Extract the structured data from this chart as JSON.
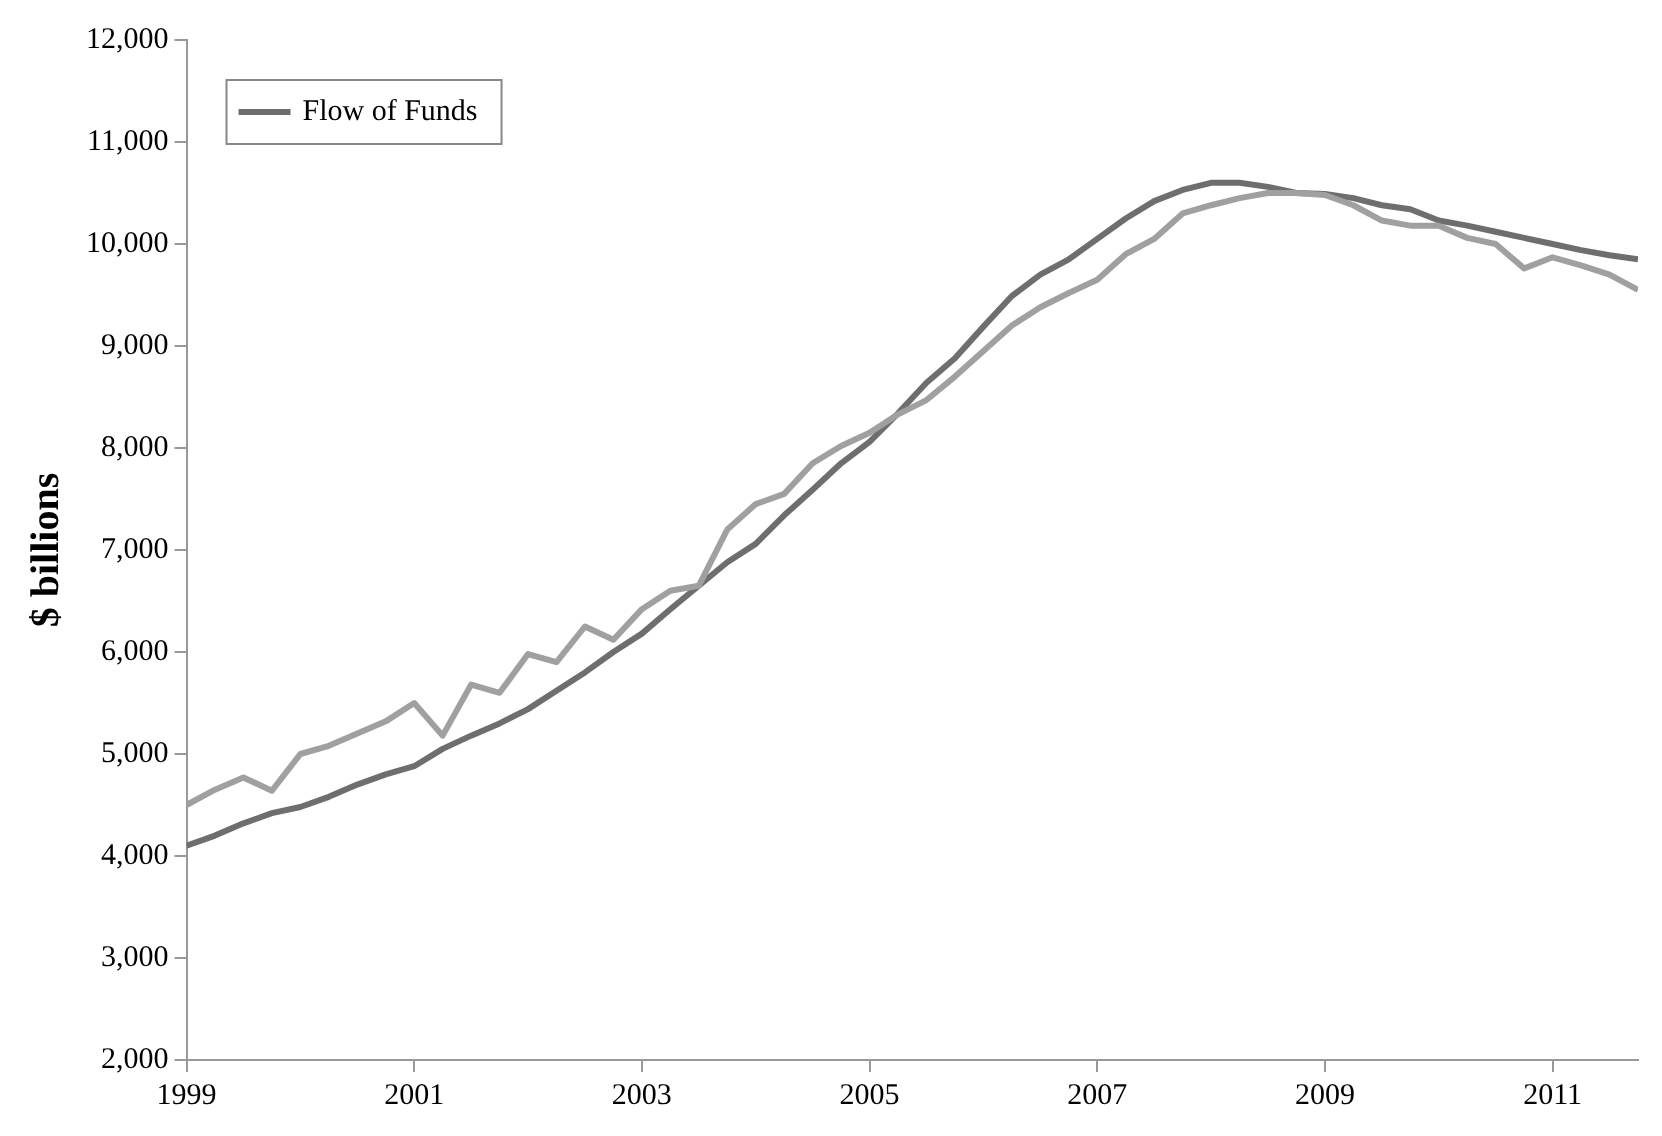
{
  "chart_data": {
    "type": "line",
    "ylabel": "$ billions",
    "x": [
      1999,
      1999.25,
      1999.5,
      1999.75,
      2000,
      2000.25,
      2000.5,
      2000.75,
      2001,
      2001.25,
      2001.5,
      2001.75,
      2002,
      2002.25,
      2002.5,
      2002.75,
      2003,
      2003.25,
      2003.5,
      2003.75,
      2004,
      2004.25,
      2004.5,
      2004.75,
      2005,
      2005.25,
      2005.5,
      2005.75,
      2006,
      2006.25,
      2006.5,
      2006.75,
      2007,
      2007.25,
      2007.5,
      2007.75,
      2008,
      2008.25,
      2008.5,
      2008.75,
      2009,
      2009.25,
      2009.5,
      2009.75,
      2010,
      2010.25,
      2010.5,
      2010.75,
      2011,
      2011.25,
      2011.5,
      2011.75
    ],
    "series": [
      {
        "color": "#a0a0a0",
        "values": [
          4500,
          4650,
          4770,
          4640,
          5000,
          5080,
          5200,
          5320,
          5500,
          5180,
          5680,
          5600,
          5980,
          5900,
          6250,
          6120,
          6420,
          6600,
          6650,
          7200,
          7450,
          7550,
          7850,
          8020,
          8150,
          8330,
          8470,
          8700,
          8950,
          9200,
          9380,
          9520,
          9650,
          9900,
          10050,
          10300,
          10380,
          10450,
          10500,
          10500,
          10480,
          10380,
          10230,
          10180,
          10180,
          10060,
          10000,
          9760,
          9870,
          9790,
          9700,
          9550
        ]
      },
      {
        "name": "Flow of Funds",
        "color": "#6e6e6e",
        "values": [
          4100,
          4200,
          4320,
          4420,
          4480,
          4580,
          4700,
          4800,
          4880,
          5050,
          5180,
          5300,
          5440,
          5620,
          5800,
          6000,
          6180,
          6420,
          6650,
          6880,
          7060,
          7340,
          7590,
          7850,
          8060,
          8340,
          8640,
          8880,
          9190,
          9490,
          9700,
          9850,
          10050,
          10250,
          10420,
          10530,
          10600,
          10600,
          10560,
          10500,
          10490,
          10450,
          10380,
          10340,
          10230,
          10180,
          10120,
          10060,
          10000,
          9940,
          9890,
          9850
        ]
      }
    ],
    "xlim": [
      1999,
      2011.75
    ],
    "xticks": [
      1999,
      2001,
      2003,
      2005,
      2007,
      2009,
      2011
    ],
    "ylim": [
      2000,
      12000
    ],
    "yticks": [
      {
        "value": 2000,
        "label": "2,000"
      },
      {
        "value": 3000,
        "label": "3,000"
      },
      {
        "value": 4000,
        "label": "4,000"
      },
      {
        "value": 5000,
        "label": "5,000"
      },
      {
        "value": 6000,
        "label": "6,000"
      },
      {
        "value": 7000,
        "label": "7,000"
      },
      {
        "value": 8000,
        "label": "8,000"
      },
      {
        "value": 9000,
        "label": "9,000"
      },
      {
        "value": 10000,
        "label": "10,000"
      },
      {
        "value": 11000,
        "label": "11,000"
      },
      {
        "value": 12000,
        "label": "12,000"
      }
    ],
    "grid": false,
    "legend": "top left",
    "marker": "none",
    "line_style": "solid"
  }
}
